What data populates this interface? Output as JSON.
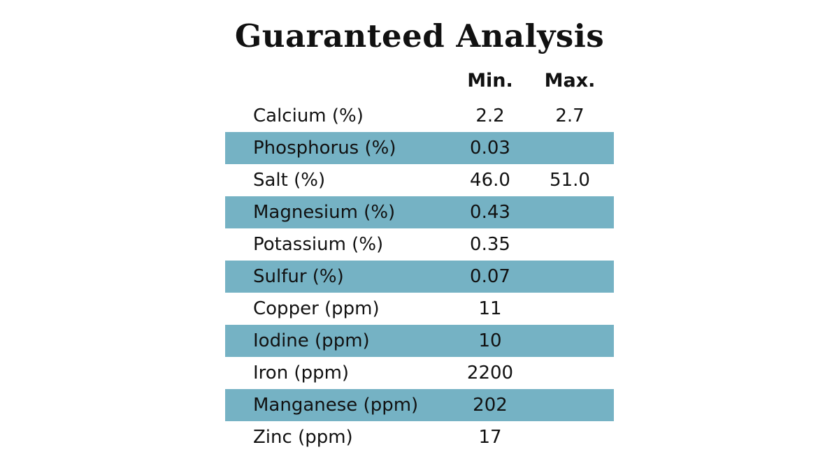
{
  "title": "Guaranteed Analysis",
  "columns": {
    "min": "Min.",
    "max": "Max."
  },
  "colors": {
    "row_shade": "#75b2c4",
    "text": "#111111",
    "background": "#ffffff"
  },
  "rows": [
    {
      "name": "Calcium (%)",
      "min": "2.2",
      "max": "2.7"
    },
    {
      "name": "Phosphorus (%)",
      "min": "0.03",
      "max": ""
    },
    {
      "name": "Salt (%)",
      "min": "46.0",
      "max": "51.0"
    },
    {
      "name": "Magnesium (%)",
      "min": "0.43",
      "max": ""
    },
    {
      "name": "Potassium (%)",
      "min": "0.35",
      "max": ""
    },
    {
      "name": "Sulfur (%)",
      "min": "0.07",
      "max": ""
    },
    {
      "name": "Copper (ppm)",
      "min": "11",
      "max": ""
    },
    {
      "name": "Iodine (ppm)",
      "min": "10",
      "max": ""
    },
    {
      "name": "Iron (ppm)",
      "min": "2200",
      "max": ""
    },
    {
      "name": "Manganese (ppm)",
      "min": "202",
      "max": ""
    },
    {
      "name": "Zinc (ppm)",
      "min": "17",
      "max": ""
    }
  ]
}
